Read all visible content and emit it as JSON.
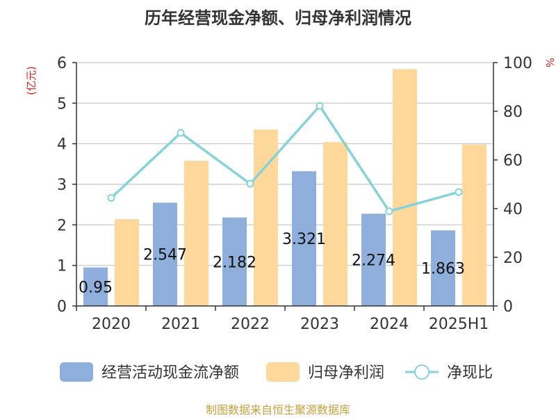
{
  "chart_data": {
    "type": "bar",
    "title": "历年经营现金净额、归母净利润情况",
    "categories": [
      "2020",
      "2021",
      "2022",
      "2023",
      "2024",
      "2025H1"
    ],
    "y_left": {
      "label": "(亿元)",
      "range": [
        0,
        6
      ],
      "ticks": [
        "0",
        "1",
        "2",
        "3",
        "4",
        "5",
        "6"
      ]
    },
    "y_right": {
      "label": "%",
      "range": [
        0,
        100
      ],
      "ticks": [
        "0",
        "20",
        "40",
        "60",
        "80",
        "100"
      ]
    },
    "grid": true,
    "legend_position": "bottom",
    "series": [
      {
        "name": "经营活动现金流净额",
        "type": "bar",
        "axis": "left",
        "color": "#8eaedb",
        "values": [
          0.95,
          2.547,
          2.182,
          3.321,
          2.274,
          1.863
        ],
        "labels": [
          "0.95",
          "2.547",
          "2.182",
          "3.321",
          "2.274",
          "1.863"
        ]
      },
      {
        "name": "归母净利润",
        "type": "bar",
        "axis": "left",
        "color": "#fdd89a",
        "values": [
          2.14,
          3.58,
          4.35,
          4.04,
          5.84,
          3.98
        ]
      },
      {
        "name": "净现比",
        "type": "line",
        "axis": "right",
        "color": "#85d3d6",
        "values": [
          44.4,
          71.1,
          50.2,
          82.2,
          38.9,
          46.8
        ]
      }
    ],
    "source": "制图数据来自恒生聚源数据库"
  }
}
